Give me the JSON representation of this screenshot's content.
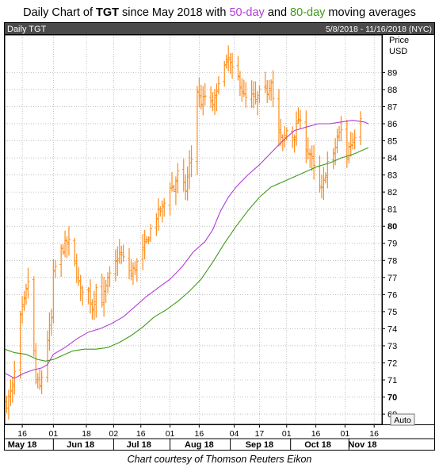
{
  "title": {
    "prefix": "Daily Chart of ",
    "ticker": "TGT",
    "middle": " since May 2018 with ",
    "ma50_label": "50-day",
    "and": " and ",
    "ma80_label": "80-day",
    "suffix": " moving averages"
  },
  "caption": "Chart courtesy of Thomson Reuters Eikon",
  "chart_data": {
    "type": "ohlc",
    "panel_title": "Daily TGT",
    "date_range": "5/8/2018 - 11/16/2018 (NYC)",
    "axis_title": "Price",
    "axis_unit": "USD",
    "auto_button": "Auto",
    "ylim": [
      68.4,
      91.2
    ],
    "y_ticks": [
      69,
      70,
      71,
      72,
      73,
      74,
      75,
      76,
      77,
      78,
      79,
      80,
      81,
      82,
      83,
      84,
      85,
      86,
      87,
      88,
      89
    ],
    "y_bold_ticks": [
      70,
      80
    ],
    "grid": true,
    "day_ticks": [
      {
        "label": "16",
        "day": 8
      },
      {
        "label": "01",
        "day": 24
      },
      {
        "label": "18",
        "day": 41
      },
      {
        "label": "02",
        "day": 55
      },
      {
        "label": "16",
        "day": 69
      },
      {
        "label": "01",
        "day": 84
      },
      {
        "label": "16",
        "day": 99
      },
      {
        "label": "04",
        "day": 117
      },
      {
        "label": "17",
        "day": 130
      },
      {
        "label": "01",
        "day": 144
      },
      {
        "label": "16",
        "day": 159
      },
      {
        "label": "01",
        "day": 174
      },
      {
        "label": "16",
        "day": 189
      }
    ],
    "month_labels": [
      {
        "label": "May 18",
        "day": 8
      },
      {
        "label": "Jun 18",
        "day": 38
      },
      {
        "label": "Jul 18",
        "day": 68
      },
      {
        "label": "Aug 18",
        "day": 99
      },
      {
        "label": "Sep 18",
        "day": 130
      },
      {
        "label": "Oct 18",
        "day": 160
      },
      {
        "label": "Nov 18",
        "day": 183
      }
    ],
    "month_separators": [
      24,
      55,
      84,
      115,
      146,
      176
    ],
    "x_range_days": [
      -1,
      193
    ],
    "anchors": [
      [
        0,
        69.6
      ],
      [
        3,
        70.6
      ],
      [
        5,
        72.2
      ],
      [
        7,
        74.6
      ],
      [
        9,
        75.6
      ],
      [
        11,
        76.8
      ],
      [
        13,
        74.2
      ],
      [
        15,
        71.0
      ],
      [
        17,
        70.6
      ],
      [
        19,
        71.8
      ],
      [
        21,
        73.4
      ],
      [
        23,
        74.6
      ],
      [
        24,
        77.2
      ],
      [
        27,
        78.4
      ],
      [
        30,
        78.9
      ],
      [
        33,
        79.1
      ],
      [
        36,
        77.2
      ],
      [
        38,
        76.2
      ],
      [
        41,
        76.6
      ],
      [
        44,
        75.2
      ],
      [
        46,
        76.4
      ],
      [
        49,
        75.6
      ],
      [
        52,
        76.8
      ],
      [
        55,
        77.6
      ],
      [
        58,
        78.4
      ],
      [
        61,
        77.9
      ],
      [
        64,
        77.2
      ],
      [
        66,
        77.6
      ],
      [
        68,
        78.1
      ],
      [
        70,
        78.6
      ],
      [
        73,
        79.4
      ],
      [
        75,
        80.2
      ],
      [
        77,
        80.6
      ],
      [
        80,
        81.1
      ],
      [
        82,
        81.6
      ],
      [
        84,
        82.4
      ],
      [
        86,
        82.2
      ],
      [
        88,
        83.1
      ],
      [
        90,
        82.6
      ],
      [
        92,
        82.1
      ],
      [
        94,
        83.6
      ],
      [
        96,
        84.3
      ],
      [
        98,
        87.9
      ],
      [
        100,
        87.2
      ],
      [
        102,
        87.6
      ],
      [
        104,
        87.3
      ],
      [
        106,
        87.1
      ],
      [
        108,
        87.8
      ],
      [
        110,
        89.4
      ],
      [
        112,
        89.3
      ],
      [
        114,
        89.8
      ],
      [
        116,
        89.1
      ],
      [
        118,
        88.9
      ],
      [
        120,
        88.4
      ],
      [
        122,
        87.6
      ],
      [
        124,
        87.3
      ],
      [
        126,
        87.6
      ],
      [
        128,
        87.3
      ],
      [
        130,
        87.8
      ],
      [
        132,
        88.1
      ],
      [
        134,
        87.9
      ],
      [
        136,
        88.6
      ],
      [
        138,
        86.4
      ],
      [
        140,
        85.4
      ],
      [
        142,
        84.9
      ],
      [
        144,
        85.6
      ],
      [
        146,
        85.1
      ],
      [
        148,
        85.4
      ],
      [
        150,
        86.3
      ],
      [
        152,
        85.6
      ],
      [
        154,
        84.6
      ],
      [
        156,
        84.2
      ],
      [
        158,
        83.4
      ],
      [
        160,
        82.4
      ],
      [
        162,
        82.1
      ],
      [
        164,
        83.1
      ],
      [
        166,
        84.4
      ],
      [
        168,
        84.1
      ],
      [
        170,
        85.2
      ],
      [
        172,
        85.6
      ],
      [
        174,
        83.6
      ],
      [
        176,
        84.6
      ],
      [
        178,
        85.1
      ],
      [
        180,
        85.6
      ],
      [
        182,
        86.5
      ]
    ],
    "series": [
      {
        "name": "50-day",
        "color": "#b23bd6",
        "points": [
          [
            -1,
            71.4
          ],
          [
            4,
            71.1
          ],
          [
            9,
            71.4
          ],
          [
            14,
            71.6
          ],
          [
            18,
            71.7
          ],
          [
            21,
            71.9
          ],
          [
            24,
            72.5
          ],
          [
            30,
            72.9
          ],
          [
            36,
            73.4
          ],
          [
            42,
            73.8
          ],
          [
            48,
            74.0
          ],
          [
            54,
            74.3
          ],
          [
            60,
            74.7
          ],
          [
            66,
            75.3
          ],
          [
            72,
            75.9
          ],
          [
            78,
            76.4
          ],
          [
            84,
            76.9
          ],
          [
            90,
            77.6
          ],
          [
            96,
            78.5
          ],
          [
            102,
            79.1
          ],
          [
            106,
            79.8
          ],
          [
            110,
            80.9
          ],
          [
            114,
            81.7
          ],
          [
            118,
            82.3
          ],
          [
            124,
            83.0
          ],
          [
            130,
            83.6
          ],
          [
            136,
            84.3
          ],
          [
            142,
            85.0
          ],
          [
            148,
            85.6
          ],
          [
            154,
            85.8
          ],
          [
            160,
            86.0
          ],
          [
            166,
            86.0
          ],
          [
            172,
            86.1
          ],
          [
            178,
            86.2
          ],
          [
            184,
            86.1
          ],
          [
            186,
            86.0
          ]
        ]
      },
      {
        "name": "80-day",
        "color": "#3f9b18",
        "points": [
          [
            -1,
            72.8
          ],
          [
            4,
            72.6
          ],
          [
            10,
            72.5
          ],
          [
            16,
            72.2
          ],
          [
            20,
            72.1
          ],
          [
            24,
            72.2
          ],
          [
            28,
            72.4
          ],
          [
            34,
            72.7
          ],
          [
            40,
            72.8
          ],
          [
            46,
            72.8
          ],
          [
            52,
            72.9
          ],
          [
            58,
            73.2
          ],
          [
            64,
            73.6
          ],
          [
            70,
            74.1
          ],
          [
            76,
            74.7
          ],
          [
            82,
            75.1
          ],
          [
            88,
            75.6
          ],
          [
            94,
            76.2
          ],
          [
            100,
            76.9
          ],
          [
            106,
            77.9
          ],
          [
            112,
            79.0
          ],
          [
            118,
            80.0
          ],
          [
            124,
            80.9
          ],
          [
            130,
            81.7
          ],
          [
            136,
            82.3
          ],
          [
            142,
            82.6
          ],
          [
            148,
            82.9
          ],
          [
            154,
            83.2
          ],
          [
            160,
            83.5
          ],
          [
            166,
            83.7
          ],
          [
            172,
            84.0
          ],
          [
            178,
            84.2
          ],
          [
            184,
            84.5
          ],
          [
            186,
            84.6
          ]
        ]
      }
    ]
  },
  "colors": {
    "panel_bg": "#ffffff",
    "panel_border": "#000000",
    "header_bg": "#4a4a4a",
    "header_text": "#ffffff",
    "grid": "#9a9a9a",
    "bar": "#ff8c1a",
    "axis_text": "#000000",
    "ma50": "#b23bd6",
    "ma80": "#3f9b18"
  }
}
